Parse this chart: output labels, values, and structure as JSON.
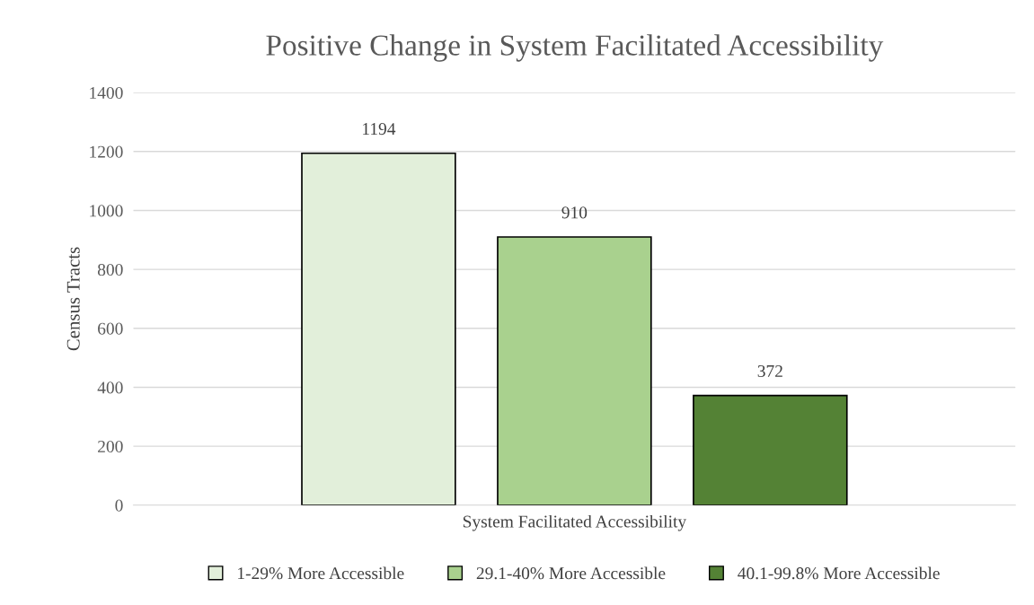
{
  "chart_data": {
    "type": "bar",
    "title": "Positive Change in System Facilitated Accessibility",
    "ylabel": "Census Tracts",
    "categories": [
      "System Facilitated Accessibility"
    ],
    "series": [
      {
        "name": "1-29% More Accessible",
        "color": "#e2efda",
        "values": [
          1194
        ]
      },
      {
        "name": "29.1-40% More Accessible",
        "color": "#a9d18e",
        "values": [
          910
        ]
      },
      {
        "name": "40.1-99.8% More Accessible",
        "color": "#548235",
        "values": [
          372
        ]
      }
    ],
    "ylim": [
      0,
      1400
    ],
    "yticks": [
      0,
      200,
      400,
      600,
      800,
      1000,
      1200,
      1400
    ],
    "grid": "y",
    "legend": "bottom",
    "data_labels": true
  }
}
